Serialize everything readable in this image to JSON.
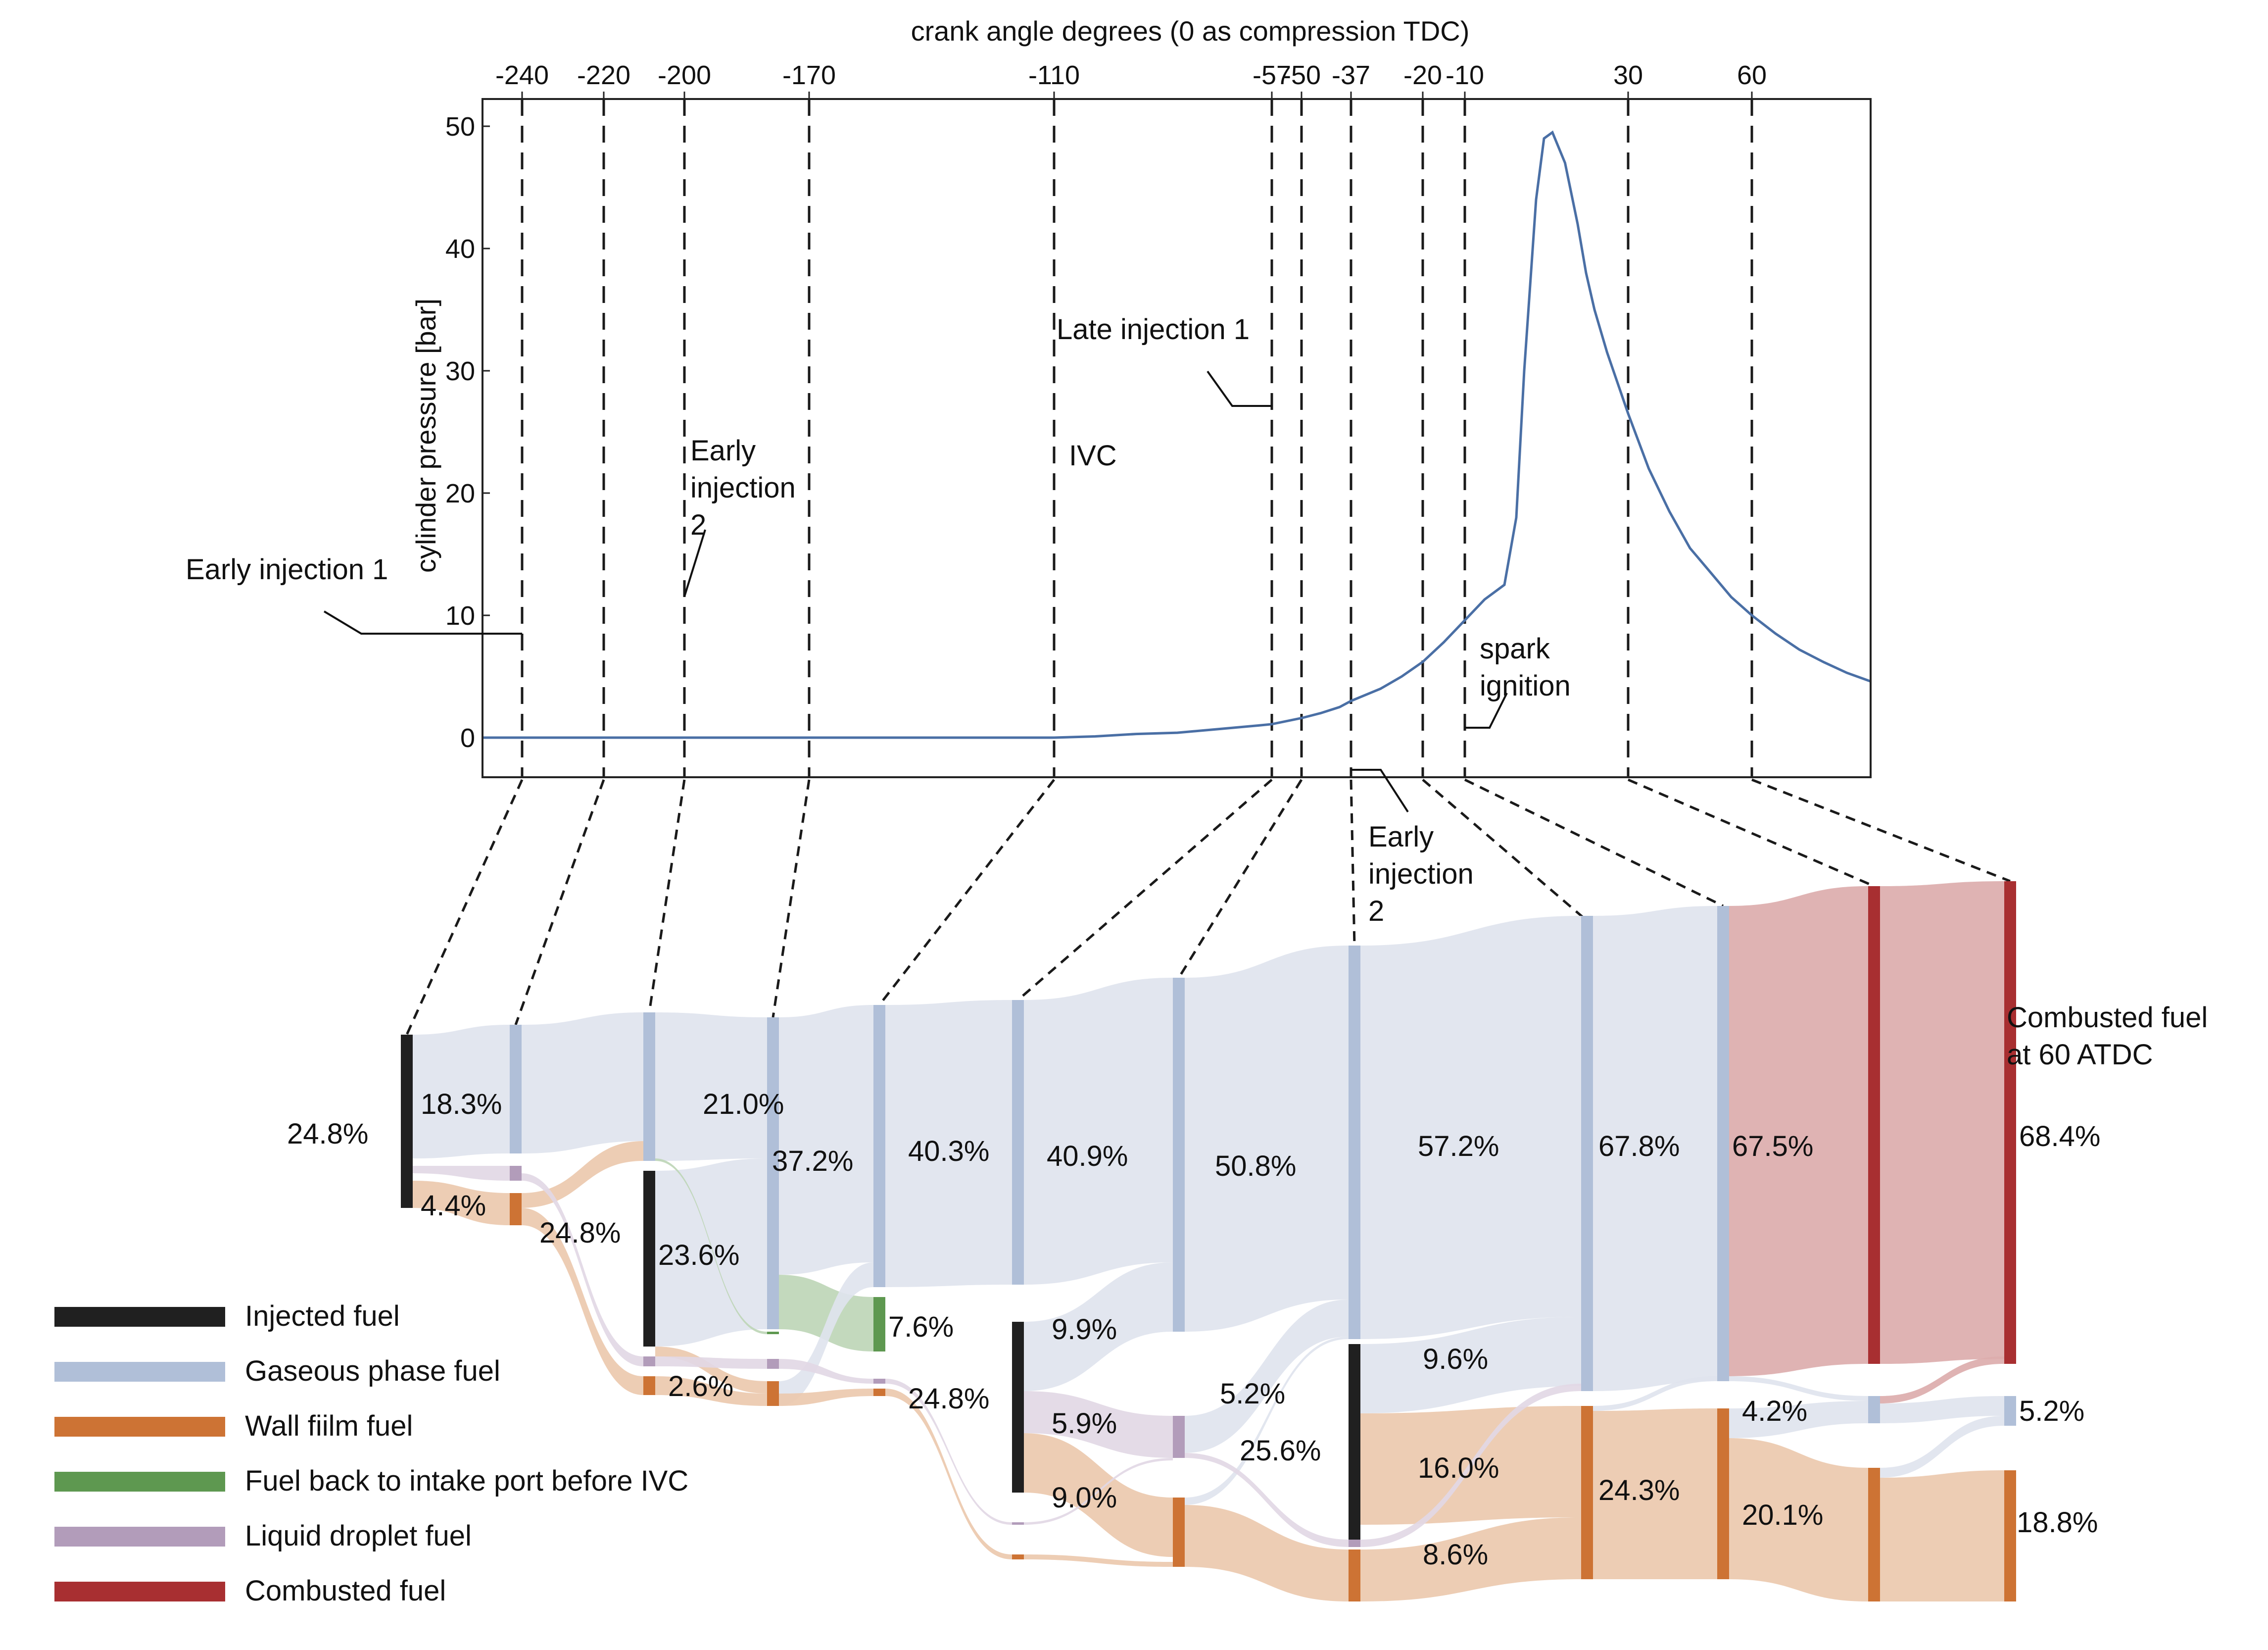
{
  "chart_data": [
    {
      "type": "line",
      "title": "",
      "xlabel": "crank angle degrees (0 as compression TDC)",
      "ylabel": "cylinder pressure [bar]",
      "xlim": [
        -250,
        85
      ],
      "ylim": [
        -3.5,
        52
      ],
      "x_ticks": [
        -240,
        -220,
        -200,
        -170,
        -110,
        -57,
        -50,
        -37,
        -20,
        -10,
        30,
        60
      ],
      "x_tick_labels": [
        "-240",
        "-220",
        "-200",
        "-170",
        "-110",
        "-57",
        "-50",
        "-37",
        "-20",
        "-10",
        "30",
        "60"
      ],
      "y_ticks": [
        0,
        10,
        20,
        30,
        40,
        50
      ],
      "y_tick_labels": [
        "0",
        "10",
        "20",
        "30",
        "40",
        "50"
      ],
      "grid": false,
      "series": [
        {
          "name": "cylinder pressure",
          "color": "#4a6fa5",
          "x": [
            -250,
            -200,
            -150,
            -110,
            -100,
            -90,
            -80,
            -70,
            -60,
            -57,
            -50,
            -45,
            -40,
            -37,
            -30,
            -25,
            -20,
            -15,
            -10,
            -5,
            0,
            3,
            5,
            8,
            10,
            12,
            15,
            18,
            20,
            22,
            25,
            28,
            30,
            35,
            40,
            45,
            50,
            55,
            60,
            65,
            70,
            75,
            80,
            85
          ],
          "y": [
            0,
            0,
            0,
            0,
            0.1,
            0.3,
            0.4,
            0.7,
            1.0,
            1.1,
            1.6,
            2.0,
            2.5,
            3.0,
            4.0,
            5.0,
            6.2,
            7.8,
            9.6,
            11.3,
            12.5,
            18,
            30,
            44,
            49,
            49.5,
            47,
            42,
            38,
            35,
            31.5,
            28.5,
            26.5,
            22,
            18.5,
            15.5,
            13.5,
            11.5,
            10.0,
            8.5,
            7.2,
            6.2,
            5.3,
            4.6
          ]
        }
      ],
      "annotations": [
        {
          "text": "Early injection 1",
          "x": -240
        },
        {
          "text": "Early injection 2",
          "x": -200
        },
        {
          "text": "IVC",
          "x": -110
        },
        {
          "text": "Late injection 1",
          "x": -57
        },
        {
          "text": "Early injection 2",
          "x": -37
        },
        {
          "text": "spark ignition",
          "x": -10
        }
      ]
    },
    {
      "type": "sankey",
      "title": "",
      "stages": [
        "-240",
        "-220",
        "-200",
        "-170",
        "-110 (pre)",
        "-110",
        "-57",
        "-50/-37",
        "-20",
        "-10",
        "30",
        "60"
      ],
      "node_labels": [
        {
          "text": "24.8%",
          "category": "Injected fuel",
          "stage": "-240"
        },
        {
          "text": "18.3%",
          "category": "Gaseous phase fuel",
          "stage": "-240→-220"
        },
        {
          "text": "4.4%",
          "category": "Wall film fuel",
          "stage": "-240→-220"
        },
        {
          "text": "21.0%",
          "category": "Gaseous phase fuel",
          "stage": "-200"
        },
        {
          "text": "24.8%",
          "category": "Injected fuel",
          "stage": "-200"
        },
        {
          "text": "23.6%",
          "category": "Gaseous phase fuel",
          "stage": "-200→-170"
        },
        {
          "text": "2.6%",
          "category": "Wall film fuel",
          "stage": "-200→-170"
        },
        {
          "text": "37.2%",
          "category": "Gaseous phase fuel",
          "stage": "-170"
        },
        {
          "text": "7.6%",
          "category": "Fuel back to intake port before IVC",
          "stage": "-110"
        },
        {
          "text": "40.3%",
          "category": "Gaseous phase fuel",
          "stage": "-110"
        },
        {
          "text": "24.8%",
          "category": "Injected fuel",
          "stage": "-57"
        },
        {
          "text": "40.9%",
          "category": "Gaseous phase fuel",
          "stage": "-57"
        },
        {
          "text": "9.9%",
          "category": "Gaseous phase fuel",
          "stage": "-57→-50"
        },
        {
          "text": "5.9%",
          "category": "Liquid droplet fuel",
          "stage": "-57→-50"
        },
        {
          "text": "9.0%",
          "category": "Wall film fuel",
          "stage": "-57→-50"
        },
        {
          "text": "50.8%",
          "category": "Gaseous phase fuel",
          "stage": "-50"
        },
        {
          "text": "5.2%",
          "category": "Gaseous phase fuel",
          "stage": "-50→-37"
        },
        {
          "text": "25.6%",
          "category": "Injected fuel",
          "stage": "-37"
        },
        {
          "text": "57.2%",
          "category": "Gaseous phase fuel",
          "stage": "-37→-20"
        },
        {
          "text": "9.6%",
          "category": "Gaseous phase fuel",
          "stage": "-37→-20"
        },
        {
          "text": "16.0%",
          "category": "Wall film fuel",
          "stage": "-37→-20"
        },
        {
          "text": "8.6%",
          "category": "Wall film fuel",
          "stage": "-37→-20"
        },
        {
          "text": "67.8%",
          "category": "Gaseous phase fuel",
          "stage": "-20→-10"
        },
        {
          "text": "24.3%",
          "category": "Wall film fuel",
          "stage": "-20→-10"
        },
        {
          "text": "67.5%",
          "category": "Combusted fuel",
          "stage": "-10→30"
        },
        {
          "text": "4.2%",
          "category": "Gaseous phase fuel",
          "stage": "-10→30"
        },
        {
          "text": "20.1%",
          "category": "Wall film fuel",
          "stage": "-10→30"
        },
        {
          "text": "68.4%",
          "category": "Combusted fuel",
          "stage": "60"
        },
        {
          "text": "5.2%",
          "category": "Gaseous phase fuel",
          "stage": "60"
        },
        {
          "text": "18.8%",
          "category": "Wall film fuel",
          "stage": "60"
        }
      ],
      "end_label": "Combusted fuel at 60 ATDC",
      "end_label_lines": [
        "Combusted fuel",
        "at 60 ATDC"
      ]
    }
  ],
  "legend": {
    "placement": "bottom-left",
    "items": [
      {
        "label": "Injected fuel",
        "color": "#202020"
      },
      {
        "label": "Gaseous phase fuel",
        "color": "#b0bfd8"
      },
      {
        "label": "Wall fiilm fuel",
        "color": "#cd7334"
      },
      {
        "label": "Fuel back to intake port before IVC",
        "color": "#5e9850"
      },
      {
        "label": "Liquid droplet fuel",
        "color": "#b29cba"
      },
      {
        "label": "Combusted fuel",
        "color": "#a82f31"
      }
    ]
  },
  "colors": {
    "injected": "#202020",
    "gas": "#b0bfd8",
    "gas_flow": "#dfe4ee",
    "wall": "#cd7334",
    "wall_flow": "#ecc9ae",
    "green": "#5e9850",
    "green_flow": "#bed6b7",
    "droplet": "#b29cba",
    "droplet_flow": "#e2d8e5",
    "combusted": "#a82f31",
    "combusted_flow": "#dcacad",
    "pressure_line": "#4a6fa5"
  }
}
